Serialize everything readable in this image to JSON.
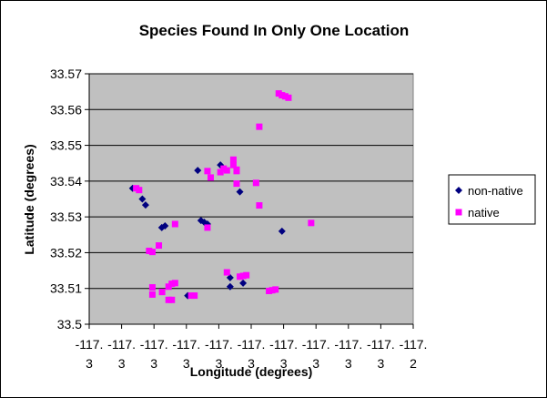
{
  "chart_data": {
    "type": "scatter",
    "title": "Species Found In Only One Location",
    "xlabel": "Longitude (degrees)",
    "ylabel": "Latitude (degrees)",
    "xlim": [
      -117.3,
      -117.2
    ],
    "ylim": [
      33.5,
      33.57
    ],
    "x_ticks": [
      -117.3,
      -117.29,
      -117.28,
      -117.27,
      -117.26,
      -117.25,
      -117.24,
      -117.23,
      -117.22,
      -117.21,
      -117.2
    ],
    "x_tick_labels": [
      [
        "-117.",
        "3"
      ],
      [
        "-117.",
        "3"
      ],
      [
        "-117.",
        "3"
      ],
      [
        "-117.",
        "3"
      ],
      [
        "-117.",
        "3"
      ],
      [
        "-117.",
        "3"
      ],
      [
        "-117.",
        "3"
      ],
      [
        "-117.",
        "3"
      ],
      [
        "-117.",
        "3"
      ],
      [
        "-117.",
        "3"
      ],
      [
        "-117.",
        "2"
      ]
    ],
    "y_ticks": [
      33.5,
      33.51,
      33.52,
      33.53,
      33.54,
      33.55,
      33.56,
      33.57
    ],
    "y_tick_labels": [
      "33.5",
      "33.51",
      "33.52",
      "33.53",
      "33.54",
      "33.55",
      "33.56",
      "33.57"
    ],
    "grid": true,
    "legend_position": "right",
    "series": [
      {
        "name": "non-native",
        "color": "#000080",
        "marker": "diamond",
        "points": [
          [
            -117.2866,
            33.538
          ],
          [
            -117.2836,
            33.535
          ],
          [
            -117.2826,
            33.5333
          ],
          [
            -117.2776,
            33.527
          ],
          [
            -117.2766,
            33.5275
          ],
          [
            -117.2696,
            33.508
          ],
          [
            -117.2665,
            33.543
          ],
          [
            -117.2655,
            33.529
          ],
          [
            -117.2645,
            33.5285
          ],
          [
            -117.2635,
            33.528
          ],
          [
            -117.2595,
            33.5445
          ],
          [
            -117.2565,
            33.5105
          ],
          [
            -117.2565,
            33.513
          ],
          [
            -117.2535,
            33.537
          ],
          [
            -117.2525,
            33.5115
          ],
          [
            -117.2405,
            33.526
          ]
        ]
      },
      {
        "name": "native",
        "color": "#ff00ff",
        "marker": "square",
        "points": [
          [
            -117.2855,
            33.538
          ],
          [
            -117.2846,
            33.5375
          ],
          [
            -117.2815,
            33.5205
          ],
          [
            -117.2805,
            33.5202
          ],
          [
            -117.2805,
            33.5103
          ],
          [
            -117.2805,
            33.5083
          ],
          [
            -117.2785,
            33.522
          ],
          [
            -117.2775,
            33.509
          ],
          [
            -117.2755,
            33.5105
          ],
          [
            -117.2755,
            33.5068
          ],
          [
            -117.2745,
            33.5113
          ],
          [
            -117.2745,
            33.5068
          ],
          [
            -117.2735,
            33.5115
          ],
          [
            -117.2735,
            33.528
          ],
          [
            -117.2685,
            33.508
          ],
          [
            -117.2675,
            33.508
          ],
          [
            -117.2625,
            33.541
          ],
          [
            -117.2595,
            33.5425
          ],
          [
            -117.2585,
            33.5435
          ],
          [
            -117.2575,
            33.543
          ],
          [
            -117.2575,
            33.5145
          ],
          [
            -117.2555,
            33.5445
          ],
          [
            -117.2555,
            33.546
          ],
          [
            -117.2545,
            33.5393
          ],
          [
            -117.2545,
            33.5428
          ],
          [
            -117.2545,
            33.5432
          ],
          [
            -117.2535,
            33.5133
          ],
          [
            -117.2525,
            33.5135
          ],
          [
            -117.2515,
            33.5137
          ],
          [
            -117.2635,
            33.527
          ],
          [
            -117.2635,
            33.5428
          ],
          [
            -117.2485,
            33.5395
          ],
          [
            -117.2475,
            33.5332
          ],
          [
            -117.2475,
            33.5552
          ],
          [
            -117.2445,
            33.5093
          ],
          [
            -117.2435,
            33.5095
          ],
          [
            -117.2425,
            33.5097
          ],
          [
            -117.2415,
            33.5645
          ],
          [
            -117.2405,
            33.564
          ],
          [
            -117.2395,
            33.5637
          ],
          [
            -117.2385,
            33.5633
          ],
          [
            -117.2315,
            33.5283
          ]
        ]
      }
    ]
  }
}
